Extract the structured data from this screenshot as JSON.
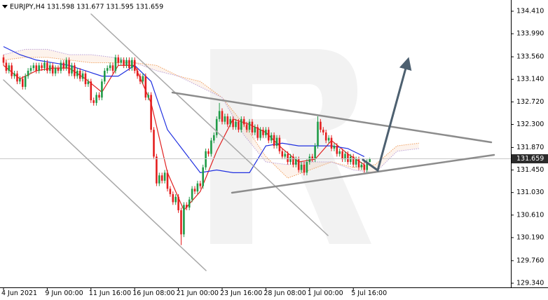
{
  "chart_data": {
    "type": "candlestick",
    "header": "EURJPY,H4  131.598 131.677 131.595 131.659",
    "up_color": "#1e9a46",
    "down_color": "#e41e1e",
    "candles": {
      "open": [
        133.55,
        133.45,
        133.3,
        133.4,
        133.2,
        133.25,
        133.1,
        133.15,
        133.0,
        133.2,
        133.3,
        133.35,
        133.4,
        133.3,
        133.4,
        133.35,
        133.45,
        133.3,
        133.4,
        133.25,
        133.35,
        133.3,
        133.45,
        133.35,
        133.5,
        133.25,
        133.4,
        133.2,
        133.3,
        133.15,
        133.25,
        133.05,
        133.1,
        132.75,
        132.7,
        132.85,
        132.8,
        133.1,
        133.3,
        133.35,
        133.4,
        133.3,
        133.55,
        133.45,
        133.5,
        133.4,
        133.5,
        133.35,
        133.5,
        133.3,
        133.2,
        133.1,
        133.2,
        132.8,
        132.85,
        132.2,
        131.7,
        131.2,
        131.35,
        131.25,
        131.4,
        131.1,
        131.0,
        130.85,
        130.95,
        130.7,
        130.25,
        130.8,
        130.75,
        130.9,
        131.1,
        131.05,
        131.2,
        131.15,
        131.5,
        131.8,
        131.75,
        132.0,
        132.1,
        132.4,
        132.55,
        132.35,
        132.45,
        132.3,
        132.4,
        132.25,
        132.35,
        132.2,
        132.4,
        132.3,
        132.2,
        132.35,
        132.15,
        132.25,
        132.05,
        132.2,
        132.1,
        132.2,
        132.0,
        132.1,
        131.9,
        132.05,
        131.8,
        131.7,
        131.75,
        131.6,
        131.7,
        131.55,
        131.65,
        131.45,
        131.55,
        131.4,
        131.6,
        131.7,
        131.65,
        131.9,
        132.35,
        132.2,
        132.15,
        132.0,
        132.05,
        131.85,
        131.9,
        131.75,
        131.8,
        131.65,
        131.75,
        131.6,
        131.7,
        131.55,
        131.65,
        131.5,
        131.55,
        131.45,
        131.598
      ],
      "high": [
        133.6,
        133.5,
        133.45,
        133.45,
        133.3,
        133.3,
        133.2,
        133.2,
        133.25,
        133.35,
        133.4,
        133.45,
        133.45,
        133.45,
        133.45,
        133.5,
        133.5,
        133.45,
        133.45,
        133.4,
        133.4,
        133.5,
        133.5,
        133.55,
        133.55,
        133.45,
        133.45,
        133.35,
        133.35,
        133.3,
        133.3,
        133.15,
        133.15,
        132.8,
        132.9,
        132.9,
        133.15,
        133.35,
        133.4,
        133.45,
        133.45,
        133.6,
        133.6,
        133.55,
        133.55,
        133.55,
        133.55,
        133.55,
        133.55,
        133.35,
        133.25,
        133.25,
        133.25,
        132.9,
        132.9,
        132.25,
        131.75,
        131.4,
        131.4,
        131.45,
        131.45,
        131.15,
        131.05,
        131.0,
        131.0,
        130.75,
        130.85,
        130.85,
        130.95,
        131.15,
        131.15,
        131.25,
        131.25,
        131.55,
        131.85,
        131.85,
        132.05,
        132.15,
        132.45,
        132.7,
        132.6,
        132.5,
        132.5,
        132.45,
        132.45,
        132.4,
        132.4,
        132.45,
        132.45,
        132.35,
        132.4,
        132.4,
        132.3,
        132.3,
        132.25,
        132.25,
        132.25,
        132.25,
        132.15,
        132.15,
        132.1,
        132.1,
        131.85,
        131.8,
        131.8,
        131.75,
        131.75,
        131.7,
        131.7,
        131.6,
        131.6,
        131.65,
        131.75,
        131.75,
        131.95,
        132.45,
        132.4,
        132.25,
        132.2,
        132.1,
        132.1,
        131.95,
        131.95,
        131.85,
        131.85,
        131.8,
        131.8,
        131.75,
        131.75,
        131.7,
        131.7,
        131.6,
        131.6,
        131.65,
        131.677
      ],
      "low": [
        133.4,
        133.25,
        133.25,
        133.15,
        133.15,
        133.05,
        133.05,
        132.95,
        132.95,
        133.15,
        133.25,
        133.3,
        133.25,
        133.25,
        133.3,
        133.3,
        133.25,
        133.25,
        133.2,
        133.2,
        133.25,
        133.25,
        133.3,
        133.3,
        133.2,
        133.2,
        133.15,
        133.15,
        133.1,
        133.1,
        133.0,
        133.0,
        132.7,
        132.65,
        132.65,
        132.75,
        132.75,
        133.05,
        133.25,
        133.3,
        133.25,
        133.25,
        133.4,
        133.4,
        133.35,
        133.35,
        133.3,
        133.3,
        133.25,
        133.15,
        133.05,
        133.05,
        132.75,
        132.75,
        132.15,
        131.65,
        131.15,
        131.15,
        131.2,
        131.2,
        131.05,
        130.95,
        130.8,
        130.8,
        130.65,
        130.05,
        130.2,
        130.7,
        130.7,
        130.85,
        131.0,
        131.0,
        131.1,
        131.1,
        131.45,
        131.7,
        131.7,
        131.95,
        132.05,
        132.35,
        132.3,
        132.3,
        132.25,
        132.25,
        132.2,
        132.2,
        132.15,
        132.15,
        132.25,
        132.15,
        132.15,
        132.1,
        132.1,
        132.0,
        132.0,
        132.05,
        132.05,
        131.95,
        131.95,
        131.85,
        131.85,
        131.75,
        131.65,
        131.65,
        131.55,
        131.55,
        131.5,
        131.5,
        131.4,
        131.4,
        131.35,
        131.35,
        131.55,
        131.6,
        131.6,
        131.85,
        132.15,
        132.1,
        131.95,
        131.95,
        131.8,
        131.8,
        131.7,
        131.7,
        131.6,
        131.6,
        131.55,
        131.55,
        131.5,
        131.5,
        131.45,
        131.45,
        131.4,
        131.4,
        131.595
      ],
      "close": [
        133.45,
        133.3,
        133.4,
        133.2,
        133.25,
        133.1,
        133.15,
        133.0,
        133.2,
        133.3,
        133.35,
        133.4,
        133.3,
        133.4,
        133.35,
        133.45,
        133.3,
        133.4,
        133.25,
        133.35,
        133.3,
        133.45,
        133.35,
        133.5,
        133.25,
        133.4,
        133.2,
        133.3,
        133.15,
        133.25,
        133.05,
        133.1,
        132.75,
        132.7,
        132.85,
        132.8,
        133.1,
        133.3,
        133.35,
        133.4,
        133.3,
        133.55,
        133.45,
        133.5,
        133.4,
        133.5,
        133.35,
        133.5,
        133.3,
        133.2,
        133.1,
        133.2,
        132.8,
        132.85,
        132.2,
        131.7,
        131.2,
        131.35,
        131.25,
        131.4,
        131.1,
        131.0,
        130.85,
        130.95,
        130.7,
        130.25,
        130.8,
        130.75,
        130.9,
        131.1,
        131.05,
        131.2,
        131.15,
        131.5,
        131.8,
        131.75,
        132.0,
        132.1,
        132.4,
        132.55,
        132.35,
        132.45,
        132.3,
        132.4,
        132.25,
        132.35,
        132.2,
        132.4,
        132.3,
        132.2,
        132.35,
        132.15,
        132.25,
        132.05,
        132.2,
        132.1,
        132.2,
        132.0,
        132.1,
        131.9,
        132.05,
        131.8,
        131.7,
        131.75,
        131.6,
        131.7,
        131.55,
        131.65,
        131.45,
        131.55,
        131.4,
        131.6,
        131.7,
        131.65,
        131.9,
        132.35,
        132.2,
        132.15,
        132.0,
        132.05,
        131.85,
        131.9,
        131.75,
        131.8,
        131.65,
        131.75,
        131.6,
        131.7,
        131.55,
        131.65,
        131.5,
        131.55,
        131.45,
        131.6,
        131.659
      ]
    },
    "series": [
      {
        "color": "#f0a060",
        "dashed": true,
        "x": [
          0,
          8,
          16,
          24,
          32,
          40,
          48,
          56,
          64,
          72,
          80,
          88,
          96,
          104,
          112,
          120,
          128,
          136,
          144,
          152
        ],
        "values": [
          133.5,
          133.55,
          133.55,
          133.5,
          133.45,
          133.45,
          133.45,
          133.4,
          133.2,
          133.1,
          132.8,
          132.3,
          131.7,
          131.3,
          131.45,
          131.6,
          131.5,
          131.55,
          131.9,
          131.95
        ]
      },
      {
        "color": "#b9a0d8",
        "dashed": true,
        "x": [
          0,
          8,
          16,
          24,
          32,
          40,
          48,
          56,
          64,
          72,
          80,
          88,
          96,
          104,
          112,
          120,
          128,
          136,
          144,
          152
        ],
        "values": [
          133.6,
          133.7,
          133.7,
          133.6,
          133.6,
          133.55,
          133.45,
          133.3,
          133.2,
          133.0,
          132.8,
          132.1,
          131.6,
          131.55,
          131.6,
          131.6,
          131.45,
          131.4,
          131.8,
          131.85
        ]
      },
      {
        "color": "#e02020",
        "dashed": false,
        "x": [
          0,
          6,
          12,
          18,
          24,
          30,
          36,
          42,
          48,
          54,
          60,
          66,
          72,
          78,
          84,
          90,
          96,
          102,
          108,
          114,
          120,
          126,
          132
        ],
        "values": [
          133.4,
          133.15,
          133.3,
          133.35,
          133.35,
          133.15,
          132.9,
          133.4,
          133.4,
          132.7,
          131.4,
          130.7,
          131.05,
          131.8,
          132.4,
          132.3,
          132.15,
          131.85,
          131.6,
          131.65,
          132.0,
          131.75,
          131.55
        ]
      },
      {
        "color": "#2030e0",
        "dashed": false,
        "x": [
          0,
          6,
          12,
          18,
          24,
          30,
          36,
          42,
          48,
          54,
          60,
          66,
          72,
          78,
          84,
          90,
          96,
          102,
          108,
          114,
          120,
          126,
          132
        ],
        "values": [
          133.75,
          133.6,
          133.5,
          133.45,
          133.4,
          133.3,
          133.2,
          133.2,
          133.4,
          133.1,
          132.2,
          131.8,
          131.4,
          131.45,
          131.4,
          131.4,
          131.9,
          131.95,
          131.9,
          131.9,
          131.9,
          131.85,
          131.7
        ]
      }
    ],
    "current_price": {
      "value": 131.659,
      "label": "131.659"
    },
    "xlim": [
      -1.28,
      185.64
    ],
    "xticks": [
      {
        "value": 0,
        "label": "4 Jun 2021"
      },
      {
        "value": 16,
        "label": "9 Jun 00:00"
      },
      {
        "value": 32,
        "label": "11 Jun 16:00"
      },
      {
        "value": 48,
        "label": "16 Jun 08:00"
      },
      {
        "value": 64,
        "label": "21 Jun 00:00"
      },
      {
        "value": 80,
        "label": "23 Jun 16:00"
      },
      {
        "value": 96,
        "label": "28 Jun 08:00"
      },
      {
        "value": 112,
        "label": "1 Jul 00:00"
      },
      {
        "value": 128,
        "label": "5 Jul 16:00"
      }
    ],
    "ylim": [
      129.262,
      134.619
    ],
    "yticks": [
      {
        "value": 134.41,
        "label": "134.410"
      },
      {
        "value": 133.99,
        "label": "133.990"
      },
      {
        "value": 133.56,
        "label": "133.560"
      },
      {
        "value": 133.14,
        "label": "133.140"
      },
      {
        "value": 132.72,
        "label": "132.720"
      },
      {
        "value": 132.3,
        "label": "132.300"
      },
      {
        "value": 131.87,
        "label": "131.870"
      },
      {
        "value": 131.45,
        "label": "131.450"
      },
      {
        "value": 131.03,
        "label": "131.030"
      },
      {
        "value": 130.61,
        "label": "130.610"
      },
      {
        "value": 130.19,
        "label": "130.190"
      },
      {
        "value": 129.76,
        "label": "129.760"
      },
      {
        "value": 129.34,
        "label": "129.340"
      }
    ],
    "grid": false
  }
}
